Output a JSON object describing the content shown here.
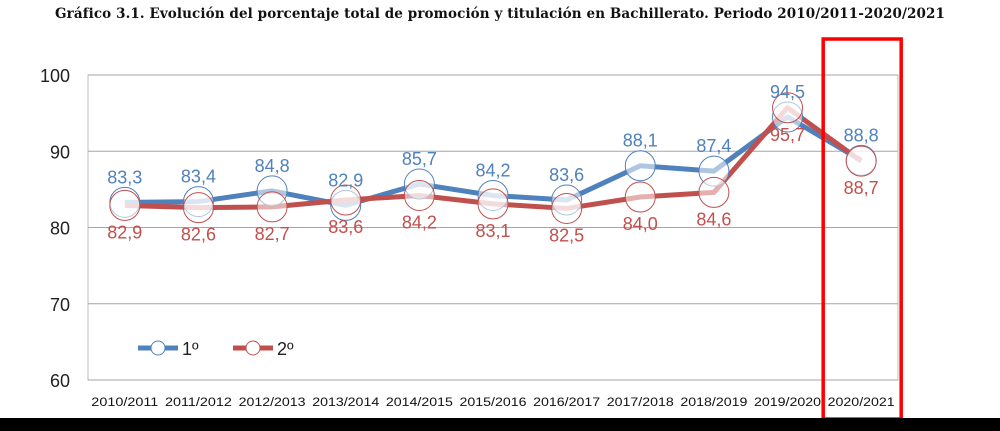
{
  "chart_data": {
    "type": "line",
    "title": "Gráfico 3.1. Evolución del porcentaje total de promoción y titulación en Bachillerato. Periodo 2010/2011-2020/2021",
    "xlabel": "",
    "ylabel": "",
    "ylim": [
      60,
      100
    ],
    "yticks": [
      60,
      70,
      80,
      90,
      100
    ],
    "grid": true,
    "legend_position": "bottom-left",
    "categories": [
      "2010/2011",
      "2011/2012",
      "2012/2013",
      "2013/2014",
      "2014/2015",
      "2015/2016",
      "2016/2017",
      "2017/2018",
      "2018/2019",
      "2019/2020",
      "2020/2021"
    ],
    "series": [
      {
        "name": "1º",
        "color": "#4f81bd",
        "values": [
          83.3,
          83.4,
          84.8,
          82.9,
          85.7,
          84.2,
          83.6,
          88.1,
          87.4,
          94.5,
          88.8
        ],
        "labels": [
          "83,3",
          "83,4",
          "84,8",
          "82,9",
          "85,7",
          "84,2",
          "83,6",
          "88,1",
          "87,4",
          "94,5",
          "88,8"
        ]
      },
      {
        "name": "2º",
        "color": "#c0504d",
        "values": [
          82.9,
          82.6,
          82.7,
          83.6,
          84.2,
          83.1,
          82.5,
          84.0,
          84.6,
          95.7,
          88.7
        ],
        "labels": [
          "82,9",
          "82,6",
          "82,7",
          "83,6",
          "84,2",
          "83,1",
          "82,5",
          "84,0",
          "84,6",
          "95,7",
          "88,7"
        ]
      }
    ],
    "highlight": {
      "category": "2020/2021",
      "color": "#ff0000"
    }
  }
}
